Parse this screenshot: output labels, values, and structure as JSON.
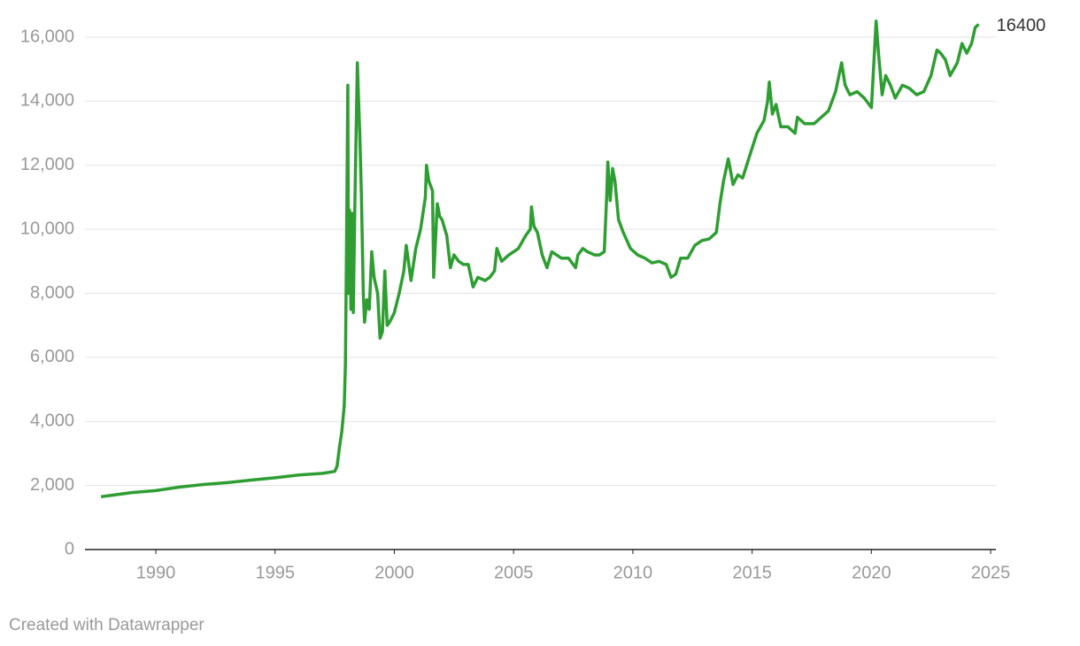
{
  "chart_data": {
    "type": "line",
    "credit": "Created with Datawrapper",
    "xlim": [
      1987.03,
      2025.22
    ],
    "xticks": [
      1990,
      1995,
      2000,
      2005,
      2010,
      2015,
      2020,
      2025
    ],
    "ylim": [
      0,
      16000
    ],
    "yticks": [
      0,
      {
        "value": 2000,
        "label": "2,000"
      },
      {
        "value": 4000,
        "label": "4,000"
      },
      {
        "value": 6000,
        "label": "6,000"
      },
      {
        "value": 8000,
        "label": "8,000"
      },
      {
        "value": 10000,
        "label": "10,000"
      },
      {
        "value": 12000,
        "label": "12,000"
      },
      {
        "value": 14000,
        "label": "14,000"
      },
      {
        "value": 16000,
        "label": "16,000"
      }
    ],
    "grid": true,
    "x": [
      1987.7,
      1989,
      1990,
      1991,
      1992,
      1993,
      1994,
      1995,
      1996,
      1997,
      1997.5,
      1997.6,
      1997.7,
      1997.8,
      1997.9,
      1997.95,
      1998.0,
      1998.05,
      1998.08,
      1998.12,
      1998.18,
      1998.22,
      1998.28,
      1998.35,
      1998.45,
      1998.5,
      1998.55,
      1998.62,
      1998.7,
      1998.75,
      1998.85,
      1998.95,
      1999.05,
      1999.15,
      1999.3,
      1999.4,
      1999.5,
      1999.6,
      1999.7,
      1999.8,
      2000.0,
      2000.2,
      2000.4,
      2000.5,
      2000.7,
      2000.9,
      2001.1,
      2001.3,
      2001.35,
      2001.45,
      2001.6,
      2001.65,
      2001.8,
      2001.9,
      2002.0,
      2002.2,
      2002.35,
      2002.5,
      2002.7,
      2002.9,
      2003.1,
      2003.3,
      2003.5,
      2003.8,
      2004.0,
      2004.2,
      2004.3,
      2004.5,
      2004.8,
      2005.0,
      2005.2,
      2005.5,
      2005.7,
      2005.75,
      2005.85,
      2006.0,
      2006.2,
      2006.4,
      2006.6,
      2006.8,
      2007.0,
      2007.3,
      2007.6,
      2007.7,
      2007.9,
      2008.1,
      2008.4,
      2008.6,
      2008.8,
      2008.9,
      2008.95,
      2009.05,
      2009.15,
      2009.25,
      2009.4,
      2009.6,
      2009.9,
      2010.2,
      2010.5,
      2010.8,
      2011.1,
      2011.4,
      2011.6,
      2011.8,
      2012.0,
      2012.3,
      2012.6,
      2012.9,
      2013.2,
      2013.5,
      2013.65,
      2013.8,
      2014.0,
      2014.2,
      2014.4,
      2014.6,
      2014.9,
      2015.2,
      2015.5,
      2015.65,
      2015.72,
      2015.85,
      2016.0,
      2016.2,
      2016.5,
      2016.8,
      2016.9,
      2017.2,
      2017.6,
      2017.9,
      2018.2,
      2018.5,
      2018.75,
      2018.9,
      2019.1,
      2019.4,
      2019.7,
      2020.0,
      2020.2,
      2020.3,
      2020.45,
      2020.6,
      2020.8,
      2021.0,
      2021.3,
      2021.6,
      2021.9,
      2022.2,
      2022.5,
      2022.75,
      2022.9,
      2023.1,
      2023.3,
      2023.6,
      2023.8,
      2024.0,
      2024.2,
      2024.35,
      2024.5
    ],
    "series": [
      {
        "color": "#2e9e32",
        "values": [
          1650,
          1780,
          1840,
          1950,
          2030,
          2090,
          2170,
          2240,
          2330,
          2380,
          2440,
          2600,
          3200,
          3700,
          4500,
          5800,
          10000,
          14500,
          8000,
          10600,
          7500,
          10500,
          7400,
          11000,
          15200,
          14000,
          13000,
          11000,
          8000,
          7100,
          7800,
          7500,
          9300,
          8500,
          8000,
          6600,
          6800,
          8700,
          7000,
          7100,
          7400,
          8000,
          8700,
          9500,
          8400,
          9400,
          10000,
          11000,
          12000,
          11500,
          11200,
          8500,
          10800,
          10400,
          10300,
          9800,
          8800,
          9200,
          9000,
          8900,
          8900,
          8200,
          8500,
          8400,
          8500,
          8700,
          9400,
          9000,
          9200,
          9300,
          9400,
          9800,
          10000,
          10700,
          10100,
          9900,
          9200,
          8800,
          9300,
          9200,
          9100,
          9100,
          8800,
          9200,
          9400,
          9300,
          9200,
          9200,
          9300,
          11000,
          12100,
          10900,
          11900,
          11500,
          10300,
          9900,
          9400,
          9200,
          9100,
          8950,
          9000,
          8900,
          8500,
          8600,
          9100,
          9100,
          9500,
          9650,
          9700,
          9900,
          10800,
          11500,
          12200,
          11400,
          11700,
          11600,
          12300,
          13000,
          13400,
          14000,
          14600,
          13600,
          13900,
          13200,
          13200,
          13000,
          13500,
          13300,
          13300,
          13500,
          13700,
          14300,
          15200,
          14500,
          14200,
          14300,
          14100,
          13800,
          16500,
          15500,
          14200,
          14800,
          14500,
          14100,
          14500,
          14400,
          14200,
          14300,
          14800,
          15600,
          15500,
          15300,
          14800,
          15200,
          15800,
          15500,
          15800,
          16300,
          16400
        ]
      }
    ]
  }
}
